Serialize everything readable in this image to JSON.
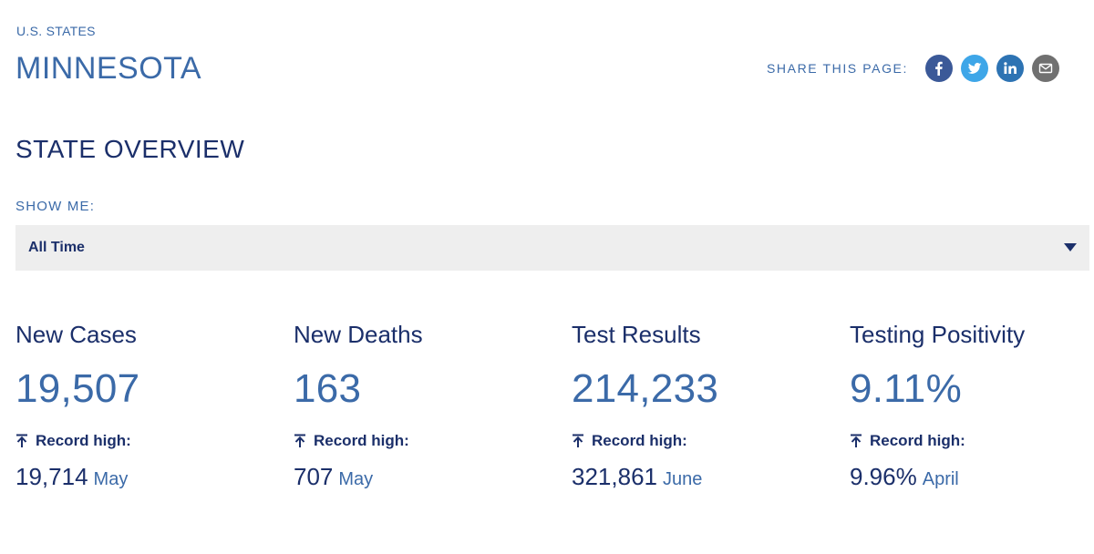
{
  "header": {
    "breadcrumb": "U.S. STATES",
    "title": "MINNESOTA"
  },
  "share": {
    "label": "SHARE THIS PAGE:",
    "buttons": [
      {
        "icon": "facebook-icon",
        "color": "#3b5998"
      },
      {
        "icon": "twitter-icon",
        "color": "#3ea6e8"
      },
      {
        "icon": "linkedin-icon",
        "color": "#2d73b3"
      },
      {
        "icon": "email-icon",
        "color": "#707070"
      }
    ]
  },
  "overview": {
    "title": "STATE OVERVIEW",
    "show_me_label": "SHOW ME:",
    "selected_range": "All Time"
  },
  "stats": [
    {
      "label": "New Cases",
      "value": "19,507",
      "record_label": "Record high:",
      "record_value": "19,714",
      "record_month": "May"
    },
    {
      "label": "New Deaths",
      "value": "163",
      "record_label": "Record high:",
      "record_value": "707",
      "record_month": "May"
    },
    {
      "label": "Test Results",
      "value": "214,233",
      "record_label": "Record high:",
      "record_value": "321,861",
      "record_month": "June"
    },
    {
      "label": "Testing Positivity",
      "value": "9.11%",
      "record_label": "Record high:",
      "record_value": "9.96%",
      "record_month": "April"
    }
  ],
  "colors": {
    "accent": "#3b6aa8",
    "heading": "#1b2f6a",
    "select_bg": "#eeeeee"
  }
}
